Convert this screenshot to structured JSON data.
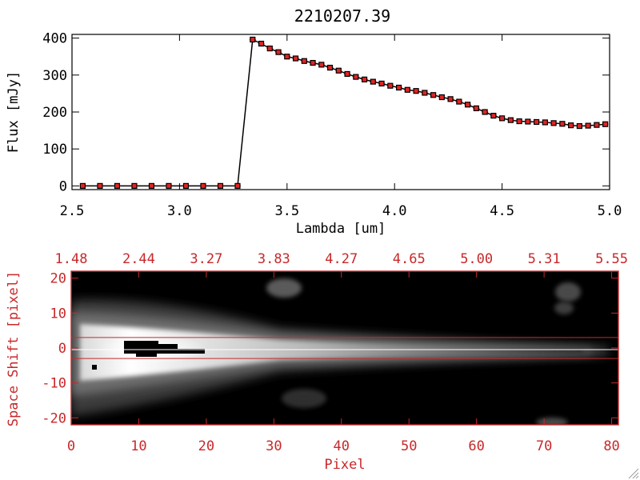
{
  "chart_data": [
    {
      "type": "line",
      "title": "2210207.39",
      "xlabel": "Lambda [um]",
      "ylabel": "Flux [mJy]",
      "xlim": [
        2.5,
        5.0
      ],
      "ylim": [
        -10,
        410
      ],
      "xticks": [
        "2.5",
        "3.0",
        "3.5",
        "4.0",
        "4.5",
        "5.0"
      ],
      "yticks": [
        "0",
        "100",
        "200",
        "300",
        "400"
      ],
      "grid": false,
      "series": [
        {
          "x": [
            2.55,
            2.63,
            2.71,
            2.79,
            2.87,
            2.95,
            3.03,
            3.11,
            3.19,
            3.27,
            3.34,
            3.38,
            3.42,
            3.46,
            3.5,
            3.54,
            3.58,
            3.62,
            3.66,
            3.7,
            3.74,
            3.78,
            3.82,
            3.86,
            3.9,
            3.94,
            3.98,
            4.02,
            4.06,
            4.1,
            4.14,
            4.18,
            4.22,
            4.26,
            4.3,
            4.34,
            4.38,
            4.42,
            4.46,
            4.5,
            4.54,
            4.58,
            4.62,
            4.66,
            4.7,
            4.74,
            4.78,
            4.82,
            4.86,
            4.9,
            4.94,
            4.98
          ],
          "y": [
            0,
            0,
            0,
            0,
            0,
            0,
            0,
            0,
            0,
            0,
            396,
            385,
            372,
            362,
            350,
            345,
            338,
            333,
            328,
            320,
            312,
            303,
            295,
            288,
            282,
            277,
            271,
            266,
            260,
            257,
            252,
            246,
            240,
            235,
            228,
            220,
            210,
            200,
            190,
            183,
            178,
            175,
            174,
            173,
            172,
            170,
            168,
            164,
            162,
            163,
            165,
            167
          ]
        }
      ]
    },
    {
      "type": "heatmap",
      "xlabel": "Pixel",
      "ylabel": "Space Shift [pixel]",
      "xlim": [
        0,
        81
      ],
      "ylim": [
        -22,
        22
      ],
      "xticks": [
        "0",
        "10",
        "20",
        "30",
        "40",
        "50",
        "60",
        "70",
        "80"
      ],
      "yticks": [
        "-20",
        "-10",
        "0",
        "10",
        "20"
      ],
      "top_xticks": [
        "1.48",
        "2.44",
        "3.27",
        "3.83",
        "4.27",
        "4.65",
        "5.00",
        "5.31",
        "5.55"
      ],
      "lines_y": [
        3,
        -3
      ],
      "colors": {
        "axis": "#c8282a",
        "trace_line": "#ffffff"
      }
    }
  ]
}
